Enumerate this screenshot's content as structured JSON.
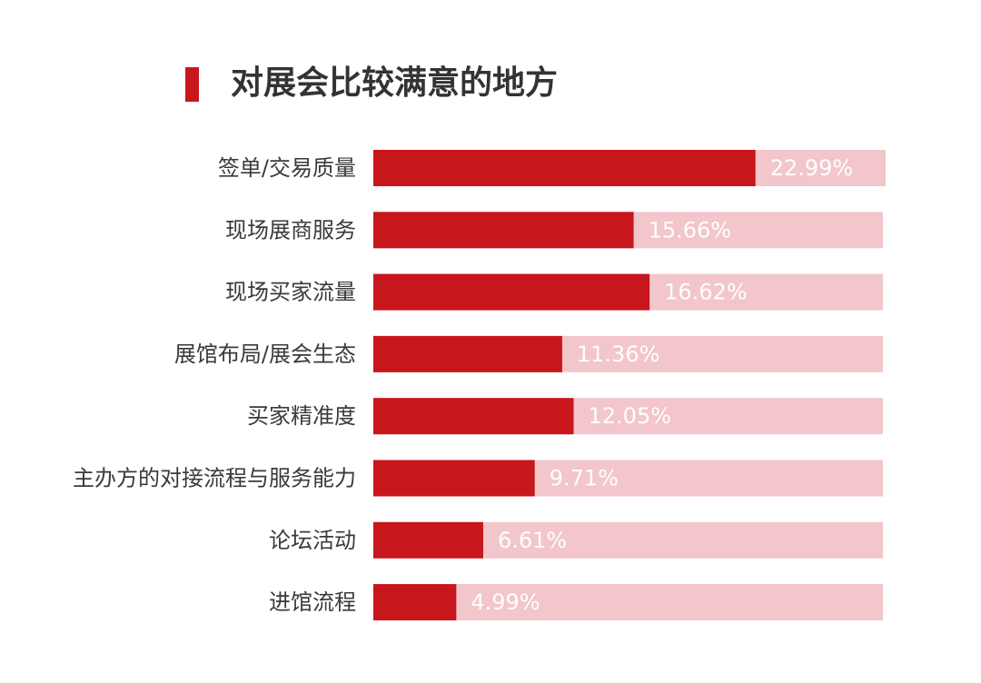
{
  "title": "对展会比较满意的地方",
  "colors": {
    "accent": "#c8161d",
    "bar": "#c8161d",
    "track": "#f2c6cb",
    "value_text": "#ffffff",
    "label_text": "#3a3a3a",
    "title_text": "#333333"
  },
  "chart_data": {
    "type": "bar",
    "orientation": "horizontal",
    "title": "对展会比较满意的地方",
    "categories": [
      "签单/交易质量",
      "现场展商服务",
      "现场买家流量",
      "展馆布局/展会生态",
      "买家精准度",
      "主办方的对接流程与服务能力",
      "论坛活动",
      "进馆流程"
    ],
    "values": [
      22.99,
      15.66,
      16.62,
      11.36,
      12.05,
      9.71,
      6.61,
      4.99
    ],
    "value_labels": [
      "22.99%",
      "15.66%",
      "16.62%",
      "11.36%",
      "12.05%",
      "9.71%",
      "6.61%",
      "4.99%"
    ],
    "unit": "%",
    "xlabel": "",
    "ylabel": "",
    "grid": false,
    "legend": "none"
  }
}
